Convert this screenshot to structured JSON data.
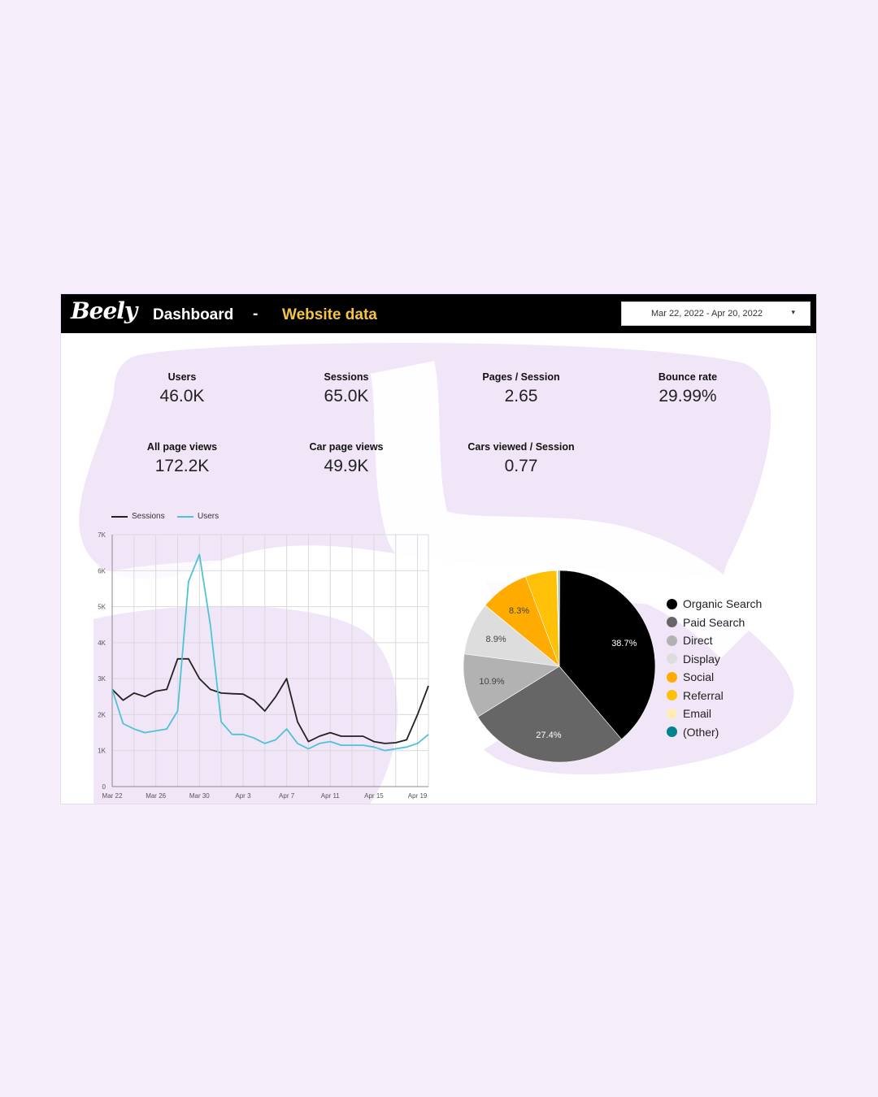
{
  "header": {
    "logo": "Beely",
    "title": "Dashboard",
    "separator": "-",
    "subtitle": "Website data",
    "date_range": "Mar 22, 2022 - Apr 20, 2022",
    "date_caret": "▾"
  },
  "colors": {
    "background": "#f6eefb",
    "header_bg": "#000000",
    "accent_yellow": "#f5c542",
    "sessions_line": "#222222",
    "users_line": "#4fc3d6"
  },
  "kpis": [
    {
      "label": "Users",
      "value": "46.0K"
    },
    {
      "label": "Sessions",
      "value": "65.0K"
    },
    {
      "label": "Pages / Session",
      "value": "2.65"
    },
    {
      "label": "Bounce rate",
      "value": "29.99%"
    },
    {
      "label": "All page views",
      "value": "172.2K"
    },
    {
      "label": "Car page views",
      "value": "49.9K"
    },
    {
      "label": "Cars viewed / Session",
      "value": "0.77"
    }
  ],
  "chart_data": [
    {
      "type": "line",
      "x_ticks": [
        "Mar 22",
        "Mar 26",
        "Mar 30",
        "Apr 3",
        "Apr 7",
        "Apr 11",
        "Apr 15",
        "Apr 19"
      ],
      "y_ticks": [
        "0",
        "1K",
        "2K",
        "3K",
        "4K",
        "5K",
        "6K",
        "7K"
      ],
      "ylim": [
        0,
        7000
      ],
      "grid": true,
      "legend_position": "top-left",
      "series": [
        {
          "name": "Sessions",
          "color": "#222222",
          "values": [
            2700,
            2400,
            2600,
            2500,
            2650,
            2700,
            3550,
            3550,
            3000,
            2700,
            2600,
            2580,
            2570,
            2400,
            2100,
            2500,
            3000,
            1800,
            1250,
            1400,
            1500,
            1400,
            1400,
            1400,
            1250,
            1200,
            1220,
            1300,
            2000,
            2800
          ]
        },
        {
          "name": "Users",
          "color": "#4fc3d6",
          "values": [
            2700,
            1750,
            1600,
            1500,
            1550,
            1600,
            2100,
            5700,
            6450,
            4500,
            1800,
            1450,
            1450,
            1350,
            1200,
            1300,
            1600,
            1200,
            1050,
            1200,
            1250,
            1150,
            1150,
            1150,
            1100,
            1000,
            1050,
            1100,
            1200,
            1450
          ]
        }
      ]
    },
    {
      "type": "pie",
      "series": [
        {
          "name": "Organic Search",
          "value": 38.7,
          "color": "#000000",
          "label": "38.7%"
        },
        {
          "name": "Paid Search",
          "value": 27.4,
          "color": "#666666",
          "label": "27.4%"
        },
        {
          "name": "Direct",
          "value": 10.9,
          "color": "#b2b2b2",
          "label": "10.9%"
        },
        {
          "name": "Display",
          "value": 8.9,
          "color": "#dddddd",
          "label": "8.9%"
        },
        {
          "name": "Social",
          "value": 8.3,
          "color": "#ffab00",
          "label": "8.3%"
        },
        {
          "name": "Referral",
          "value": 5.3,
          "color": "#ffc107",
          "label": ""
        },
        {
          "name": "Email",
          "value": 0.3,
          "color": "#ffecb3",
          "label": ""
        },
        {
          "name": "(Other)",
          "value": 0.2,
          "color": "#00838f",
          "label": ""
        }
      ],
      "legend_position": "right"
    }
  ]
}
